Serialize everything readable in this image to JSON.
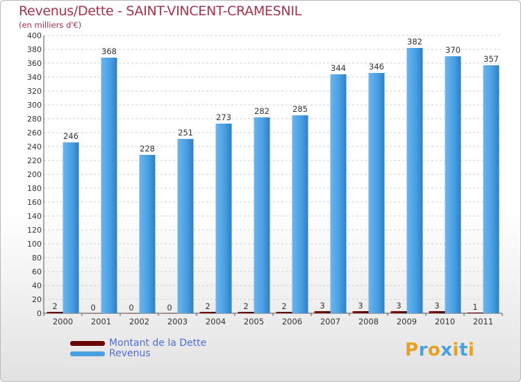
{
  "header": {
    "title": "Revenus/Dette - SAINT-VINCENT-CRAMESNIL",
    "subtitle": "(en milliers d'€)"
  },
  "legend": {
    "items": [
      {
        "label": "Montant de la Dette",
        "color": "#6b0000"
      },
      {
        "label": "Revenus",
        "color": "#4a9fe0"
      }
    ]
  },
  "logo": {
    "letters": [
      "P",
      "r",
      "o",
      "x",
      "i",
      "t",
      "i"
    ],
    "colors": [
      "#e8a020",
      "#4aa0e0",
      "#e8a020",
      "#4aa0e0",
      "#e8a020",
      "#4aa0e0",
      "#e8a020"
    ]
  },
  "chart_data": {
    "type": "bar",
    "categories": [
      "2000",
      "2001",
      "2002",
      "2003",
      "2004",
      "2005",
      "2006",
      "2007",
      "2008",
      "2009",
      "2010",
      "2011"
    ],
    "series": [
      {
        "name": "Montant de la Dette",
        "color": "#6b0000",
        "values": [
          2,
          0,
          0,
          0,
          2,
          2,
          2,
          3,
          3,
          3,
          3,
          1
        ]
      },
      {
        "name": "Revenus",
        "color": "#4a9fe0",
        "values": [
          246,
          368,
          228,
          251,
          273,
          282,
          285,
          344,
          346,
          382,
          370,
          357
        ]
      }
    ],
    "ylim": [
      0,
      400
    ],
    "ytick_step": 20,
    "grid": true
  }
}
